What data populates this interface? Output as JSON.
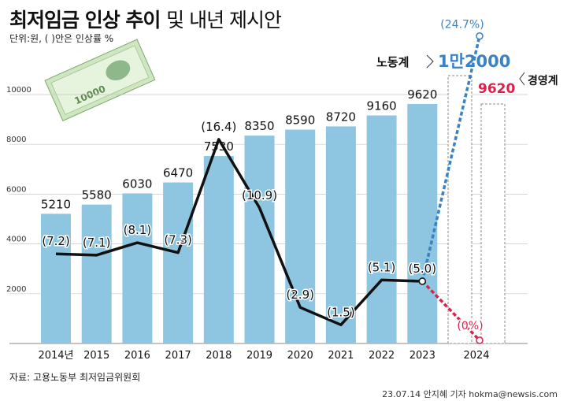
{
  "title": "최저임금 인상 추이",
  "title_rest": "및 내년 제시안",
  "unit": "단위:원, ( )안은 인상률 %",
  "source": "자료: 고용노동부 최저임금위원회",
  "credit": "23.07.14 안지혜 기자 hokma@newsis.com",
  "banknote_label": "10000",
  "chart_data": {
    "type": "bar",
    "title": "최저임금 인상 추이 및 내년 제시안",
    "categories": [
      "2014년",
      "2015",
      "2016",
      "2017",
      "2018",
      "2019",
      "2020",
      "2021",
      "2022",
      "2023"
    ],
    "values": [
      5210,
      5580,
      6030,
      6470,
      7530,
      8350,
      8590,
      8720,
      9160,
      9620
    ],
    "value_labels": [
      "5210",
      "5580",
      "6030",
      "6470",
      "7530",
      "8350",
      "8590",
      "8720",
      "9160",
      "9620"
    ],
    "rate_values": [
      7.2,
      7.1,
      8.1,
      7.3,
      16.4,
      10.9,
      2.9,
      1.5,
      5.1,
      5.0
    ],
    "rate_labels": [
      "(7.2)",
      "(7.1)",
      "(8.1)",
      "(7.3)",
      "(16.4)",
      "(10.9)",
      "(2.9)",
      "(1.5)",
      "(5.1)",
      "(5.0)"
    ],
    "ylim": [
      0,
      10000
    ],
    "yticks": [
      "2000",
      "4000",
      "6000",
      "8000",
      "10000"
    ],
    "rate_axis_range": [
      0,
      20
    ],
    "grid": true,
    "proposal_year": "2024",
    "proposals": [
      {
        "name": "노동계",
        "value": 12000,
        "label": "1만2000",
        "rate": 24.7,
        "rate_label": "(24.7%)",
        "color": "#3a82c4"
      },
      {
        "name": "경영계",
        "value": 9620,
        "label": "9620",
        "rate": 0,
        "rate_label": "(0%)",
        "color": "#d8234c"
      }
    ],
    "colors": {
      "bar": "#8ec6e2",
      "rate_line": "#111111",
      "labor": "#3a82c4",
      "business": "#d8234c"
    }
  }
}
